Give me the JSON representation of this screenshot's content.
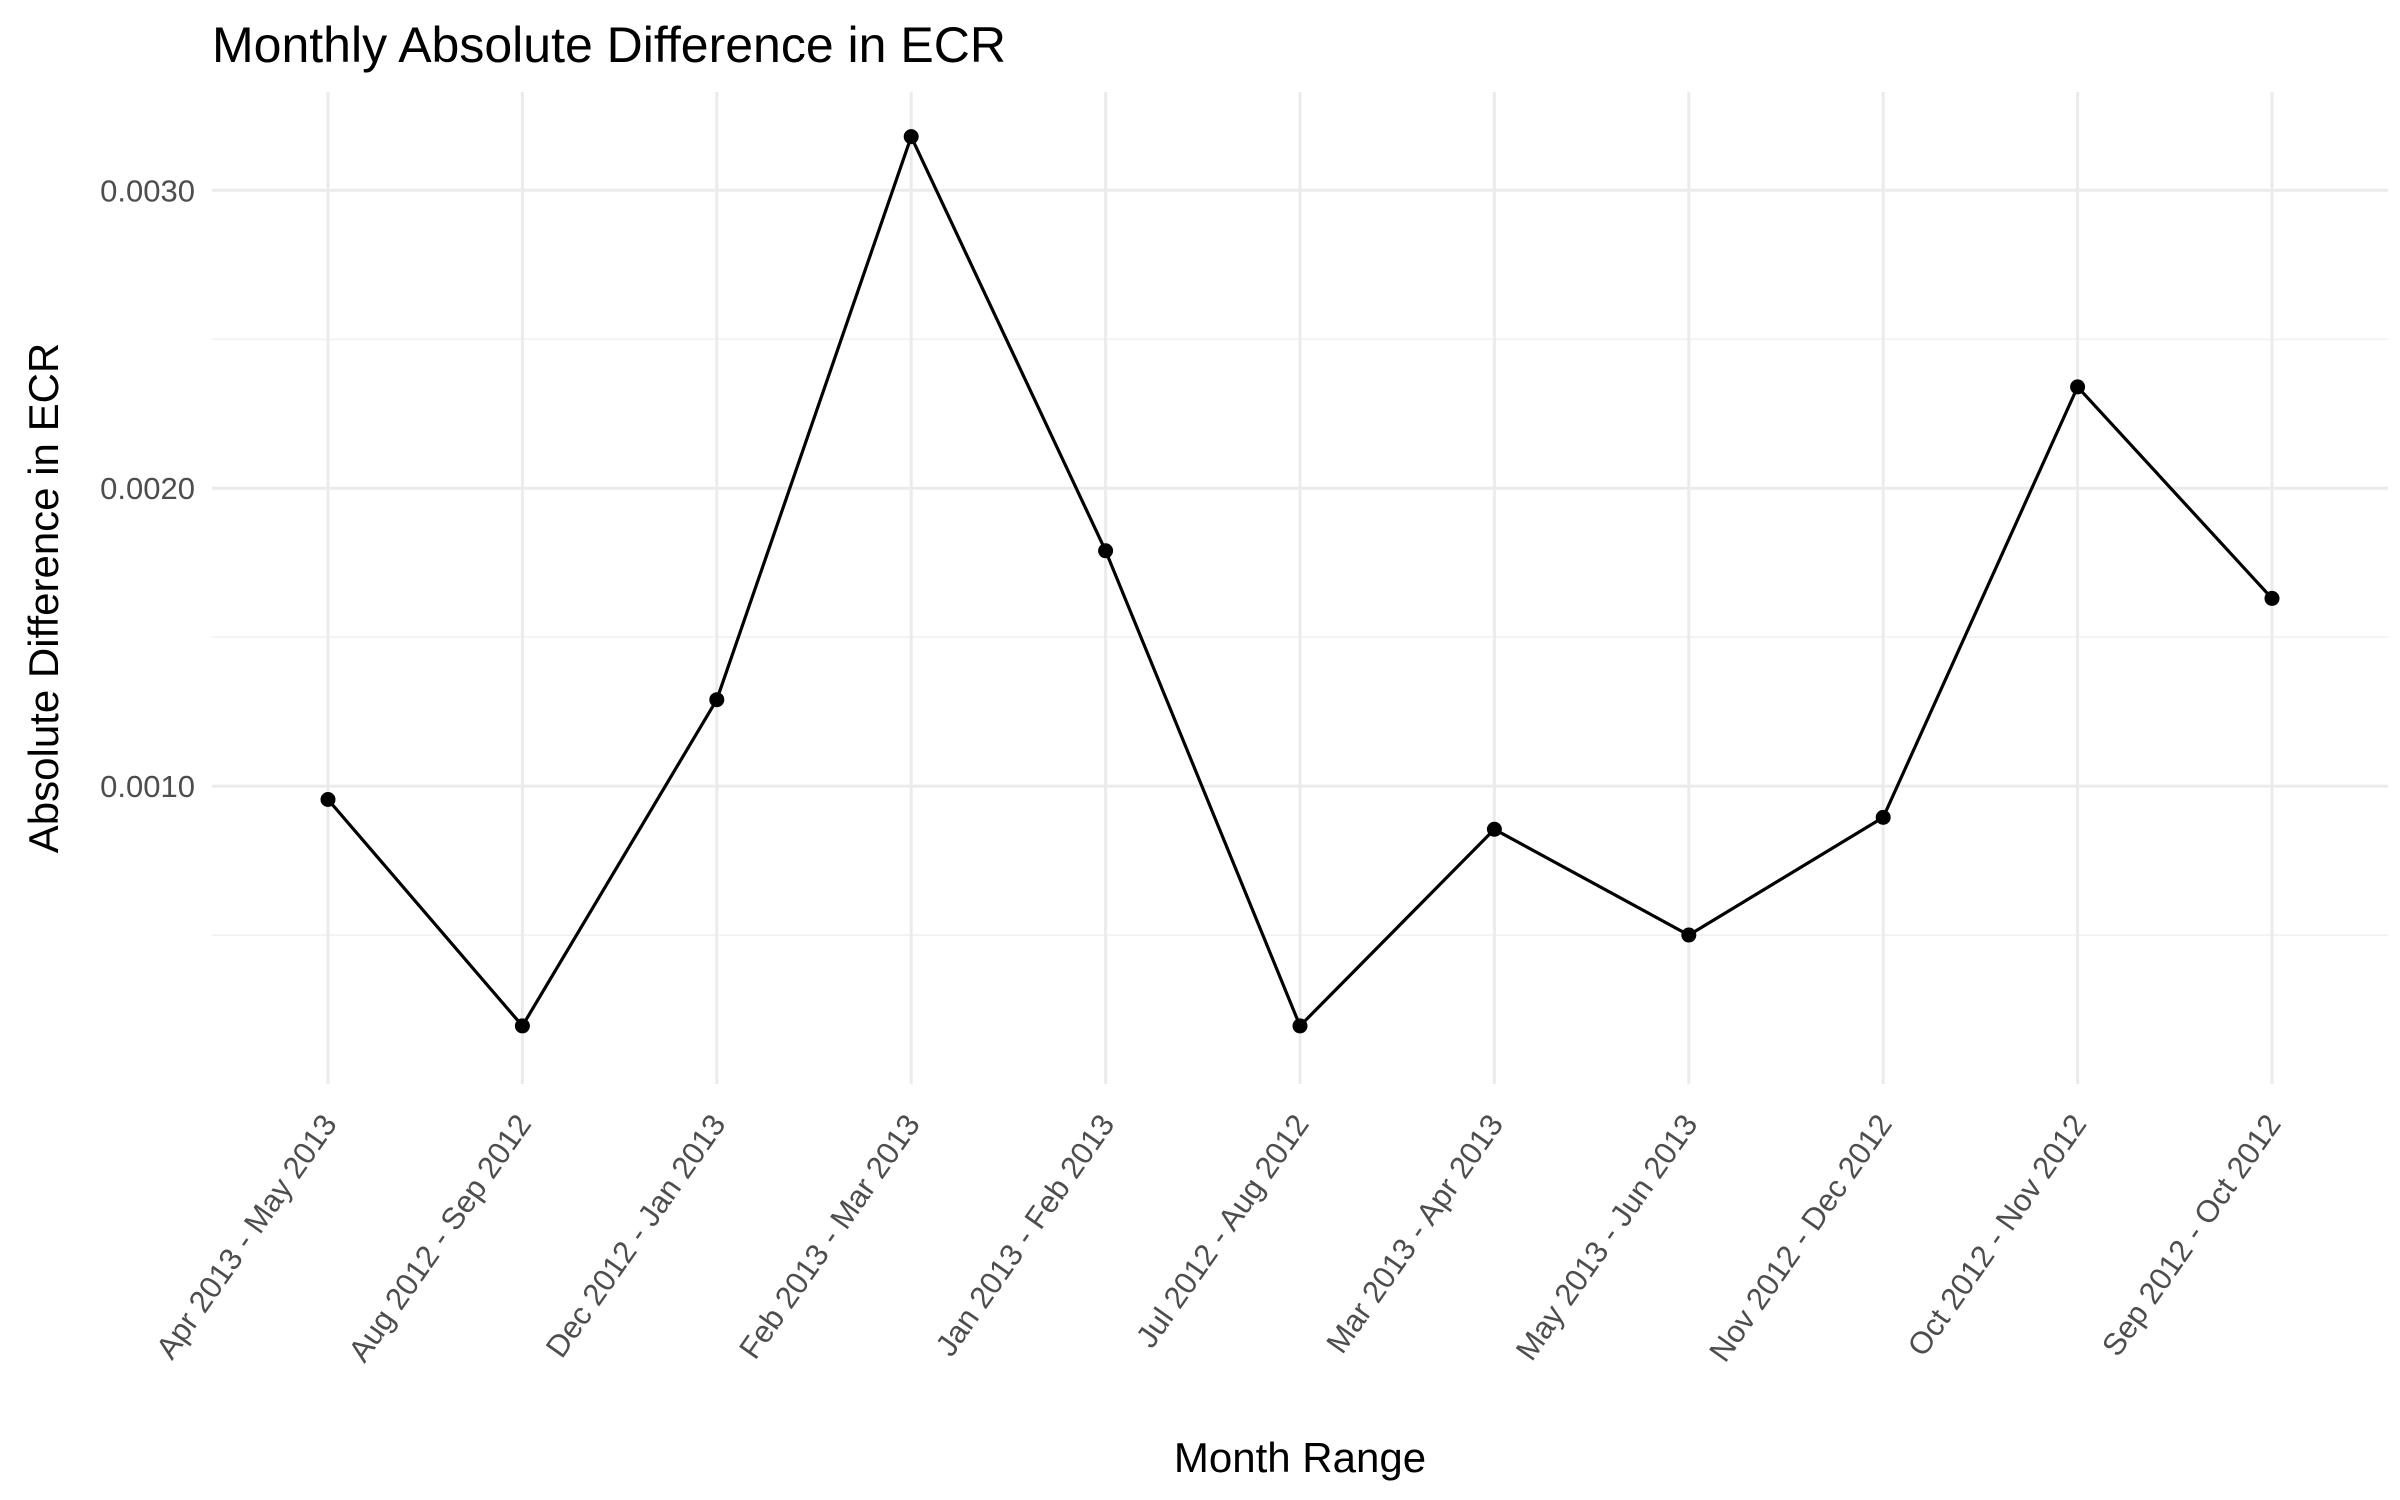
{
  "chart_data": {
    "type": "line",
    "title": "Monthly Absolute Difference in ECR",
    "xlabel": "Month Range",
    "ylabel": "Absolute Difference in ECR",
    "categories": [
      "Apr 2013 - May 2013",
      "Aug 2012 - Sep 2012",
      "Dec 2012 - Jan 2013",
      "Feb 2013 - Mar 2013",
      "Jan 2013 - Feb 2013",
      "Jul 2012 - Aug 2012",
      "Mar 2013 - Apr 2013",
      "May 2013 - Jun 2013",
      "Nov 2012 - Dec 2012",
      "Oct 2012 - Nov 2012",
      "Sep 2012 - Oct 2012"
    ],
    "values": [
      0.000955,
      0.000195,
      0.00129,
      0.00318,
      0.00179,
      0.000195,
      0.000855,
      0.0005,
      0.000895,
      0.00234,
      0.00163
    ],
    "ylim": [
      0.0,
      0.00333
    ],
    "yticks": [
      0.001,
      0.002,
      0.003
    ],
    "ytick_labels": [
      "0.0010",
      "0.0020",
      "0.0030"
    ],
    "yminor_ticks": [
      0.0005,
      0.0015,
      0.0025
    ],
    "grid": true,
    "legend": "none",
    "colors": {
      "line": "#000000",
      "point": "#000000",
      "grid_major": "#ebebeb",
      "grid_minor": "#f2f2f2",
      "tick_text": "#4d4d4d"
    }
  }
}
